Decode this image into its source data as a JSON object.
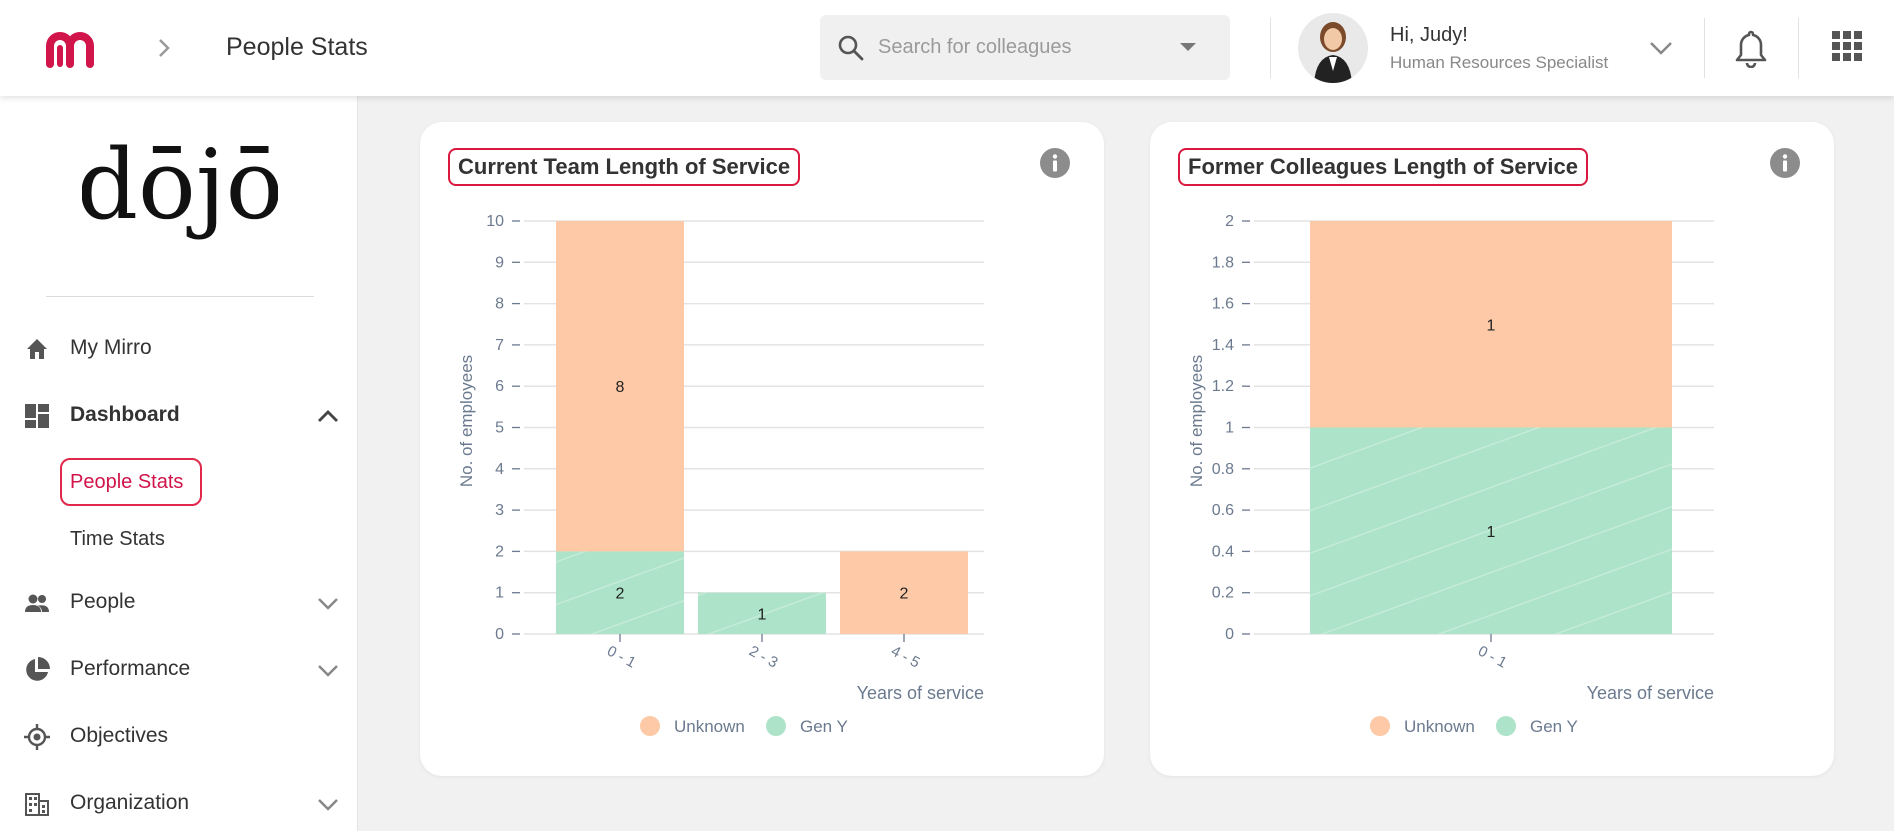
{
  "header": {
    "page_title": "People Stats",
    "search_placeholder": "Search for colleagues",
    "greeting": "Hi, Judy!",
    "role": "Human Resources Specialist"
  },
  "sidebar": {
    "brand": "dōjō",
    "items": [
      {
        "label": "My Mirro",
        "icon": "home-icon"
      },
      {
        "label": "Dashboard",
        "icon": "dashboard-icon",
        "expanded": true,
        "children": [
          {
            "label": "People Stats",
            "active": true
          },
          {
            "label": "Time Stats"
          }
        ]
      },
      {
        "label": "People",
        "icon": "people-icon"
      },
      {
        "label": "Performance",
        "icon": "pie-icon"
      },
      {
        "label": "Objectives",
        "icon": "target-icon"
      },
      {
        "label": "Organization",
        "icon": "building-icon"
      }
    ]
  },
  "colors": {
    "accent": "#d1144a",
    "unknown": "#fdc9a6",
    "gen_y": "#ade3c8"
  },
  "chart_data": [
    {
      "type": "bar",
      "stacked": true,
      "title": "Current Team Length of Service",
      "xlabel": "Years of service",
      "ylabel": "No. of employees",
      "categories": [
        "0 - 1",
        "2 - 3",
        "4 - 5"
      ],
      "series": [
        {
          "name": "Gen Y",
          "values": [
            2,
            1,
            0
          ]
        },
        {
          "name": "Unknown",
          "values": [
            8,
            0,
            2
          ]
        }
      ],
      "ylim": [
        0,
        10
      ],
      "yticks": [
        "0",
        "1",
        "2",
        "3",
        "4",
        "5",
        "6",
        "7",
        "8",
        "9",
        "10"
      ],
      "grid": true,
      "legend": "bottom",
      "legend_labels": [
        "Unknown",
        "Gen Y"
      ]
    },
    {
      "type": "bar",
      "stacked": true,
      "title": "Former Colleagues Length of Service",
      "xlabel": "Years of service",
      "ylabel": "No. of employees",
      "categories": [
        "0 - 1"
      ],
      "series": [
        {
          "name": "Gen Y",
          "values": [
            1
          ]
        },
        {
          "name": "Unknown",
          "values": [
            1
          ]
        }
      ],
      "ylim": [
        0,
        2
      ],
      "yticks": [
        "0",
        "0.2",
        "0.4",
        "0.6",
        "0.8",
        "1",
        "1.2",
        "1.4",
        "1.6",
        "1.8",
        "2"
      ],
      "grid": true,
      "legend": "bottom",
      "legend_labels": [
        "Unknown",
        "Gen Y"
      ]
    }
  ]
}
